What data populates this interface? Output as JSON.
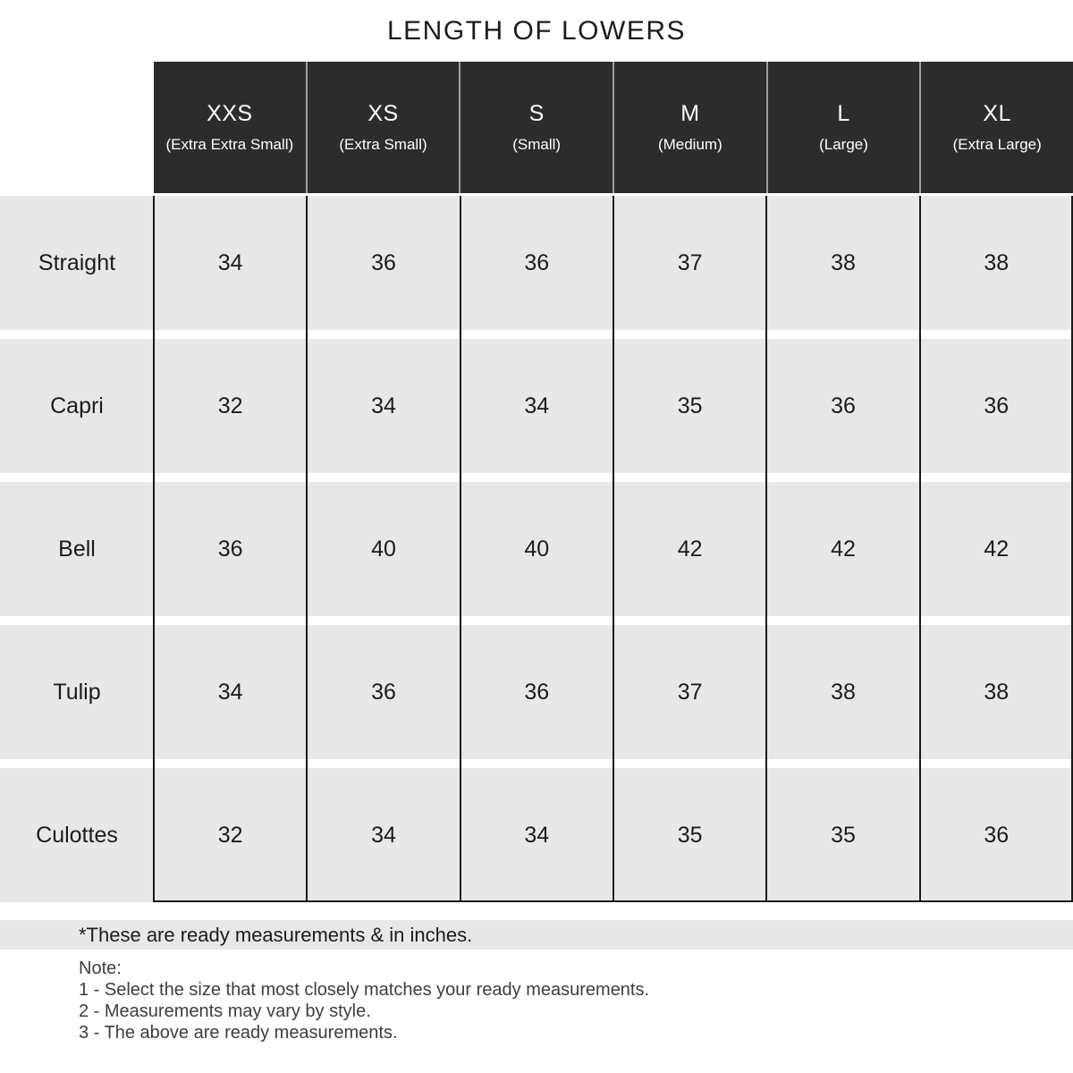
{
  "title": "LENGTH OF LOWERS",
  "table": {
    "columns": [
      {
        "size": "XXS",
        "description": "(Extra Extra Small)"
      },
      {
        "size": "XS",
        "description": "(Extra Small)"
      },
      {
        "size": "S",
        "description": "(Small)"
      },
      {
        "size": "M",
        "description": "(Medium)"
      },
      {
        "size": "L",
        "description": "(Large)"
      },
      {
        "size": "XL",
        "description": "(Extra Large)"
      }
    ],
    "rows": [
      {
        "label": "Straight",
        "values": [
          "34",
          "36",
          "36",
          "37",
          "38",
          "38"
        ]
      },
      {
        "label": "Capri",
        "values": [
          "32",
          "34",
          "34",
          "35",
          "36",
          "36"
        ]
      },
      {
        "label": "Bell",
        "values": [
          "36",
          "40",
          "40",
          "42",
          "42",
          "42"
        ]
      },
      {
        "label": "Tulip",
        "values": [
          "34",
          "36",
          "36",
          "37",
          "38",
          "38"
        ]
      },
      {
        "label": "Culottes",
        "values": [
          "32",
          "34",
          "34",
          "35",
          "35",
          "36"
        ]
      }
    ]
  },
  "footnote": "*These are ready measurements & in inches.",
  "notes": {
    "heading": "Note:",
    "items": [
      "1 - Select the size that most closely matches your ready measurements.",
      "2 - Measurements may vary by style.",
      "3 - The above are ready measurements."
    ]
  },
  "chart_data": {
    "type": "table",
    "title": "LENGTH OF LOWERS",
    "columns": [
      "XXS (Extra Extra Small)",
      "XS (Extra Small)",
      "S (Small)",
      "M (Medium)",
      "L (Large)",
      "XL (Extra Large)"
    ],
    "rows": [
      "Straight",
      "Capri",
      "Bell",
      "Tulip",
      "Culottes"
    ],
    "values": [
      [
        34,
        36,
        36,
        37,
        38,
        38
      ],
      [
        32,
        34,
        34,
        35,
        36,
        36
      ],
      [
        36,
        40,
        40,
        42,
        42,
        42
      ],
      [
        34,
        36,
        36,
        37,
        38,
        38
      ],
      [
        32,
        34,
        34,
        35,
        35,
        36
      ]
    ],
    "units": "inches"
  },
  "colors": {
    "header_bg": "#2d2c2c",
    "header_separator": "#9e9e9e",
    "row_bg": "#e9e8e8",
    "grid_line": "#1a1a1a",
    "text_dark": "#1c1c1c",
    "note_text": "#3d3d3d"
  }
}
